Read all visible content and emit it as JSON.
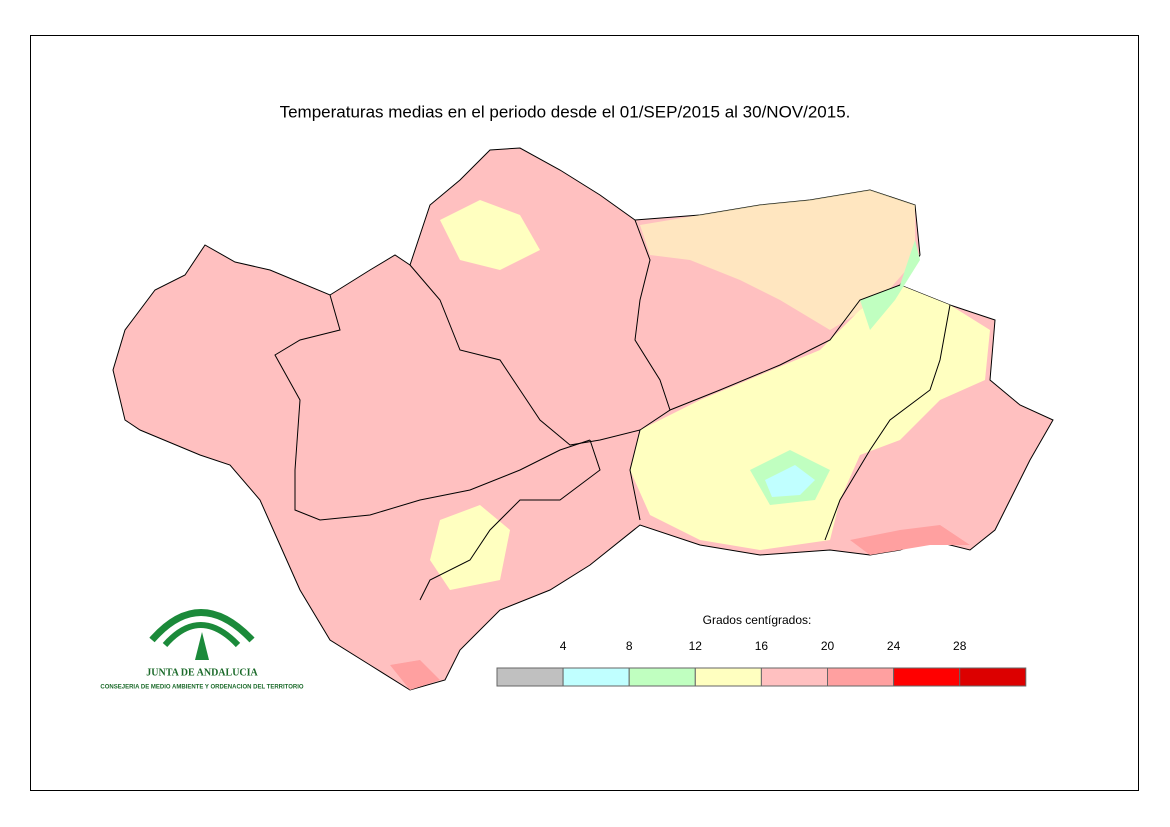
{
  "title": "Temperaturas medias en el periodo desde el 01/SEP/2015 al 30/NOV/2015.",
  "legend": {
    "title": "Grados centígrados:",
    "ticks": [
      4,
      8,
      12,
      16,
      20,
      24,
      28
    ],
    "colors": [
      "#c0c0c0",
      "#c0ffff",
      "#c0ffc0",
      "#ffffc0",
      "#ffc0c0",
      "#ffa0a0",
      "#ff0000",
      "#dc0000"
    ]
  },
  "logo": {
    "name": "JUNTA DE ANDALUCIA",
    "department": "CONSEJERIA DE MEDIO AMBIENTE Y ORDENACION DEL TERRITORIO"
  }
}
